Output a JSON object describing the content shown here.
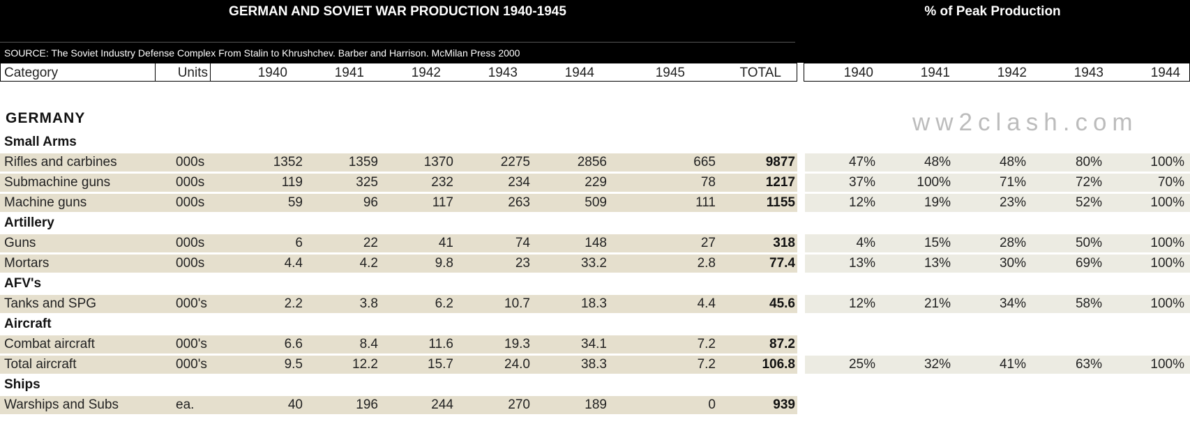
{
  "header": {
    "title": "GERMAN AND SOVIET WAR PRODUCTION 1940-1945",
    "peak_title": "% of Peak Production",
    "source": "SOURCE: The Soviet Industry Defense Complex From Stalin to Khrushchev. Barber and Harrison. McMilan Press 2000"
  },
  "columns": {
    "left": [
      "Category",
      "Units",
      "1940",
      "1941",
      "1942",
      "1943",
      "1944",
      "1945",
      "TOTAL"
    ],
    "right": [
      "1940",
      "1941",
      "1942",
      "1943",
      "1944"
    ]
  },
  "watermark": "ww2clash.com",
  "section": "GERMANY",
  "groups": [
    {
      "name": "Small Arms",
      "rows": [
        {
          "label": "Rifles and carbines",
          "units": "000s",
          "values": [
            "1352",
            "1359",
            "1370",
            "2275",
            "2856",
            "665"
          ],
          "total": "9877",
          "peak": [
            "47%",
            "48%",
            "48%",
            "80%",
            "100%"
          ]
        },
        {
          "label": "Submachine guns",
          "units": "000s",
          "values": [
            "119",
            "325",
            "232",
            "234",
            "229",
            "78"
          ],
          "total": "1217",
          "peak": [
            "37%",
            "100%",
            "71%",
            "72%",
            "70%"
          ]
        },
        {
          "label": "Machine guns",
          "units": "000s",
          "values": [
            "59",
            "96",
            "117",
            "263",
            "509",
            "111"
          ],
          "total": "1155",
          "peak": [
            "12%",
            "19%",
            "23%",
            "52%",
            "100%"
          ]
        }
      ]
    },
    {
      "name": "Artillery",
      "rows": [
        {
          "label": "Guns",
          "units": "000s",
          "values": [
            "6",
            "22",
            "41",
            "74",
            "148",
            "27"
          ],
          "total": "318",
          "peak": [
            "4%",
            "15%",
            "28%",
            "50%",
            "100%"
          ]
        },
        {
          "label": "Mortars",
          "units": "000s",
          "values": [
            "4.4",
            "4.2",
            "9.8",
            "23",
            "33.2",
            "2.8"
          ],
          "total": "77.4",
          "peak": [
            "13%",
            "13%",
            "30%",
            "69%",
            "100%"
          ]
        }
      ]
    },
    {
      "name": "AFV's",
      "rows": [
        {
          "label": "Tanks and SPG",
          "units": "000's",
          "values": [
            "2.2",
            "3.8",
            "6.2",
            "10.7",
            "18.3",
            "4.4"
          ],
          "total": "45.6",
          "peak": [
            "12%",
            "21%",
            "34%",
            "58%",
            "100%"
          ]
        }
      ]
    },
    {
      "name": "Aircraft",
      "rows": [
        {
          "label": "Combat aircraft",
          "units": "000's",
          "values": [
            "6.6",
            "8.4",
            "11.6",
            "19.3",
            "34.1",
            "7.2"
          ],
          "total": "87.2",
          "peak": []
        },
        {
          "label": "Total aircraft",
          "units": "000's",
          "values": [
            "9.5",
            "12.2",
            "15.7",
            "24.0",
            "38.3",
            "7.2"
          ],
          "total": "106.8",
          "peak": [
            "25%",
            "32%",
            "41%",
            "63%",
            "100%"
          ]
        }
      ]
    },
    {
      "name": "Ships",
      "rows": [
        {
          "label": "Warships and Subs",
          "units": "ea.",
          "values": [
            "40",
            "196",
            "244",
            "270",
            "189",
            "0"
          ],
          "total": "939",
          "peak": []
        }
      ]
    }
  ]
}
